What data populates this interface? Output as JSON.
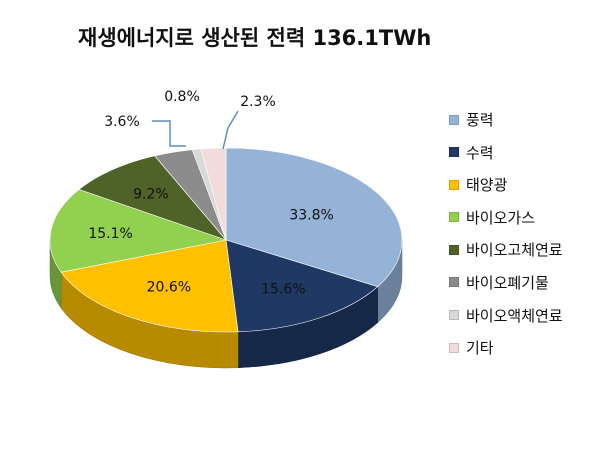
{
  "title": "재생에너지로 생산된 전력  136.1TWh",
  "chart_data": {
    "type": "pie",
    "title": "재생에너지로 생산된 전력  136.1TWh",
    "legend_position": "right",
    "slices": [
      {
        "label": "풍력",
        "value": 33.8,
        "display": "33.8%",
        "color": "#95B3D7"
      },
      {
        "label": "수력",
        "value": 15.6,
        "display": "15.6%",
        "color": "#1F3864"
      },
      {
        "label": "태양광",
        "value": 20.6,
        "display": "20.6%",
        "color": "#FFC000"
      },
      {
        "label": "바이오가스",
        "value": 15.1,
        "display": "15.1%",
        "color": "#92D050"
      },
      {
        "label": "바이오고체연료",
        "value": 9.2,
        "display": "9.2%",
        "color": "#4F6228"
      },
      {
        "label": "바이오폐기물",
        "value": 3.6,
        "display": "3.6%",
        "color": "#8C8C8C"
      },
      {
        "label": "바이오액체연료",
        "value": 0.8,
        "display": "0.8%",
        "color": "#D9D9D9"
      },
      {
        "label": "기타",
        "value": 2.3,
        "display": "2.3%",
        "color": "#F2DCDB"
      }
    ]
  }
}
